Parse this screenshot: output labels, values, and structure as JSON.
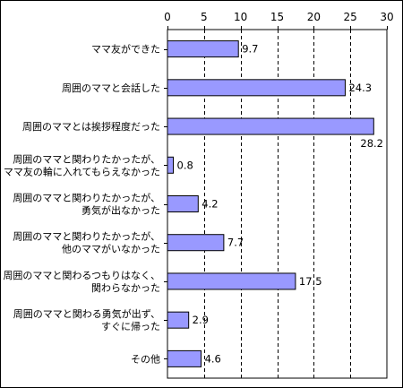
{
  "chart_data": {
    "type": "bar",
    "orientation": "horizontal",
    "categories": [
      [
        "ママ友ができた"
      ],
      [
        "周囲のママと会話した"
      ],
      [
        "周囲のママとは挨拶程度だった"
      ],
      [
        "周囲のママと関わりたかったが、",
        "ママ友の輪に入れてもらえなかった"
      ],
      [
        "周囲のママと関わりたかったが、",
        "勇気が出なかった"
      ],
      [
        "周囲のママと関わりたかったが、",
        "他のママがいなかった"
      ],
      [
        "周囲のママと関わるつもりはなく、",
        "関わらなかった"
      ],
      [
        "周囲のママと関わる勇気が出ず、",
        "すぐに帰った"
      ],
      [
        "その他"
      ]
    ],
    "values": [
      9.7,
      24.3,
      28.2,
      0.8,
      4.2,
      7.7,
      17.5,
      2.9,
      4.6
    ],
    "value_labels": [
      "9.7",
      "24.3",
      "28.2",
      "0.8",
      "4.2",
      "7.7",
      "17.5",
      "2.9",
      "4.6"
    ],
    "xlim": [
      0,
      30
    ],
    "xticks": [
      0,
      5,
      10,
      15,
      20,
      25,
      30
    ],
    "axis_position": "top",
    "grid": "vertical-dashed",
    "bar_color": "#9999ff",
    "bar_edge_color": "#000000",
    "title": "",
    "xlabel": "",
    "ylabel": ""
  }
}
